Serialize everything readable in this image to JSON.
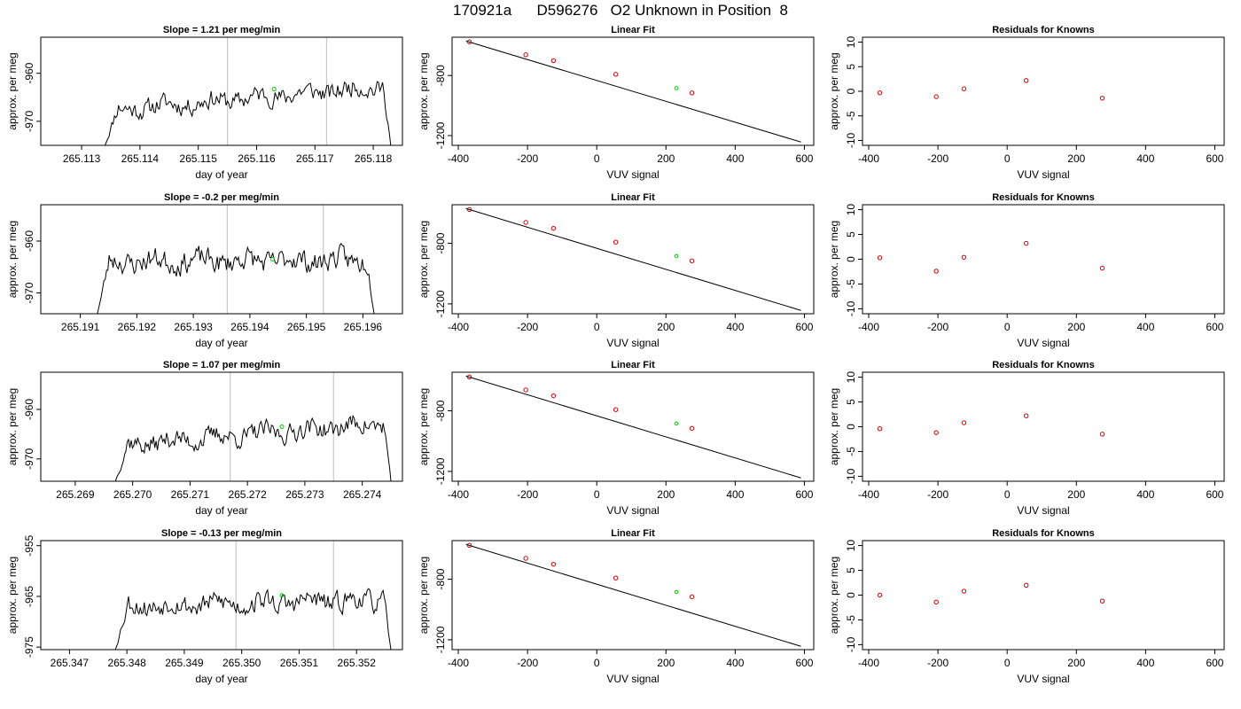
{
  "figure": {
    "title": "170921a      D596276   O2 Unknown in Position  8"
  },
  "chart_data": [
    {
      "type": "line",
      "panel": "time-series",
      "row": 1,
      "title": "Slope =  1.21  per meg/min",
      "xlabel": "day of year",
      "ylabel": "approx. per meg",
      "xlim": [
        265.1123,
        265.1185
      ],
      "ylim": [
        -975,
        -952.5
      ],
      "xticks": [
        265.113,
        265.114,
        265.115,
        265.116,
        265.117,
        265.118
      ],
      "xtick_labels": [
        "265.113",
        "265.114",
        "265.115",
        "265.116",
        "265.117",
        "265.118"
      ],
      "yticks": [
        -960,
        -970
      ],
      "ytick_labels": [
        "-960",
        "-970"
      ],
      "vlines": [
        265.1155,
        265.1172
      ],
      "highlight_point": {
        "x": 265.1163,
        "y": -963.3
      },
      "trace": {
        "start": 265.1134,
        "end": 265.1183,
        "base": -965.2,
        "trend": 5.2,
        "amp": 2.2,
        "seed": 11,
        "rise_from": -975,
        "fall_to": -975
      }
    },
    {
      "type": "scatter",
      "panel": "linear-fit",
      "row": 1,
      "title": "Linear Fit",
      "xlabel": "VUV signal",
      "ylabel": "approx. per meg",
      "xlim": [
        -418,
        627
      ],
      "ylim": [
        -1265,
        -545
      ],
      "xticks": [
        -400,
        -200,
        0,
        200,
        400,
        600
      ],
      "xtick_labels": [
        "-400",
        "-200",
        "0",
        "200",
        "400",
        "600"
      ],
      "yticks": [
        -800,
        -1200
      ],
      "ytick_labels": [
        "-800",
        "-1200"
      ],
      "fit_line": {
        "x": [
          -378,
          590
        ],
        "y": [
          -570,
          -1243
        ]
      },
      "knowns": {
        "x": [
          -368,
          -205,
          -125,
          55,
          275
        ],
        "y": [
          -576,
          -662,
          -701,
          -792,
          -916
        ]
      },
      "unknown": {
        "x": 230,
        "y": -884
      }
    },
    {
      "type": "scatter",
      "panel": "residuals",
      "row": 1,
      "title": "Residuals for Knowns",
      "xlabel": "VUV signal",
      "ylabel": "approx. per meg",
      "xlim": [
        -418,
        627
      ],
      "ylim": [
        -11,
        11
      ],
      "xticks": [
        -400,
        -200,
        0,
        200,
        400,
        600
      ],
      "xtick_labels": [
        "-400",
        "-200",
        "0",
        "200",
        "400",
        "600"
      ],
      "yticks": [
        10,
        5,
        0,
        -5,
        -10
      ],
      "ytick_labels": [
        "10",
        "5",
        "0",
        "-5",
        "-10"
      ],
      "points": {
        "x": [
          -368,
          -205,
          -125,
          55,
          275
        ],
        "y": [
          -0.3,
          -1.1,
          0.5,
          2.2,
          -1.4
        ]
      }
    },
    {
      "type": "line",
      "panel": "time-series",
      "row": 2,
      "title": "Slope =  -0.2  per meg/min",
      "xlabel": "day of year",
      "ylabel": "approx. per meg",
      "xlim": [
        265.1903,
        265.1967
      ],
      "ylim": [
        -974,
        -953
      ],
      "xticks": [
        265.191,
        265.192,
        265.193,
        265.194,
        265.195,
        265.196
      ],
      "xtick_labels": [
        "265.191",
        "265.192",
        "265.193",
        "265.194",
        "265.195",
        "265.196"
      ],
      "yticks": [
        -960,
        -970
      ],
      "ytick_labels": [
        "-960",
        "-970"
      ],
      "vlines": [
        265.1936,
        265.1953
      ],
      "highlight_point": {
        "x": 265.1944,
        "y": -963.5
      },
      "trace": {
        "start": 265.1913,
        "end": 265.1962,
        "base": -963.8,
        "trend": 0.3,
        "amp": 2.4,
        "seed": 23,
        "rise_from": -974,
        "fall_to": -974
      }
    },
    {
      "type": "scatter",
      "panel": "linear-fit",
      "row": 2,
      "title": "Linear Fit",
      "xlabel": "VUV signal",
      "ylabel": "approx. per meg",
      "xlim": [
        -418,
        627
      ],
      "ylim": [
        -1265,
        -545
      ],
      "xticks": [
        -400,
        -200,
        0,
        200,
        400,
        600
      ],
      "xtick_labels": [
        "-400",
        "-200",
        "0",
        "200",
        "400",
        "600"
      ],
      "yticks": [
        -800,
        -1200
      ],
      "ytick_labels": [
        "-800",
        "-1200"
      ],
      "fit_line": {
        "x": [
          -378,
          590
        ],
        "y": [
          -570,
          -1243
        ]
      },
      "knowns": {
        "x": [
          -368,
          -205,
          -125,
          55,
          275
        ],
        "y": [
          -576,
          -662,
          -701,
          -792,
          -916
        ]
      },
      "unknown": {
        "x": 230,
        "y": -884
      }
    },
    {
      "type": "scatter",
      "panel": "residuals",
      "row": 2,
      "title": "Residuals for Knowns",
      "xlabel": "VUV signal",
      "ylabel": "approx. per meg",
      "xlim": [
        -418,
        627
      ],
      "ylim": [
        -11,
        11
      ],
      "xticks": [
        -400,
        -200,
        0,
        200,
        400,
        600
      ],
      "xtick_labels": [
        "-400",
        "-200",
        "0",
        "200",
        "400",
        "600"
      ],
      "yticks": [
        10,
        5,
        0,
        -5,
        -10
      ],
      "ytick_labels": [
        "10",
        "5",
        "0",
        "-5",
        "-10"
      ],
      "points": {
        "x": [
          -368,
          -205,
          -125,
          55,
          275
        ],
        "y": [
          0.3,
          -2.4,
          0.4,
          3.2,
          -1.8
        ]
      }
    },
    {
      "type": "line",
      "panel": "time-series",
      "row": 3,
      "title": "Slope =  1.07  per meg/min",
      "xlabel": "day of year",
      "ylabel": "approx. per meg",
      "xlim": [
        265.2684,
        265.2747
      ],
      "ylim": [
        -974.5,
        -952.5
      ],
      "xticks": [
        265.269,
        265.27,
        265.271,
        265.272,
        265.273,
        265.274
      ],
      "xtick_labels": [
        "265.269",
        "265.270",
        "265.271",
        "265.272",
        "265.273",
        "265.274"
      ],
      "yticks": [
        -960,
        -970
      ],
      "ytick_labels": [
        "-960",
        "-970"
      ],
      "vlines": [
        265.2717,
        265.2735
      ],
      "highlight_point": {
        "x": 265.2726,
        "y": -963.5
      },
      "trace": {
        "start": 265.2697,
        "end": 265.2745,
        "base": -965,
        "trend": 4.6,
        "amp": 2.2,
        "seed": 37,
        "rise_from": -974.5,
        "fall_to": -974.5
      }
    },
    {
      "type": "scatter",
      "panel": "linear-fit",
      "row": 3,
      "title": "Linear Fit",
      "xlabel": "VUV signal",
      "ylabel": "approx. per meg",
      "xlim": [
        -418,
        627
      ],
      "ylim": [
        -1265,
        -545
      ],
      "xticks": [
        -400,
        -200,
        0,
        200,
        400,
        600
      ],
      "xtick_labels": [
        "-400",
        "-200",
        "0",
        "200",
        "400",
        "600"
      ],
      "yticks": [
        -800,
        -1200
      ],
      "ytick_labels": [
        "-800",
        "-1200"
      ],
      "fit_line": {
        "x": [
          -378,
          590
        ],
        "y": [
          -570,
          -1243
        ]
      },
      "knowns": {
        "x": [
          -368,
          -205,
          -125,
          55,
          275
        ],
        "y": [
          -576,
          -662,
          -701,
          -792,
          -916
        ]
      },
      "unknown": {
        "x": 230,
        "y": -884
      }
    },
    {
      "type": "scatter",
      "panel": "residuals",
      "row": 3,
      "title": "Residuals for Knowns",
      "xlabel": "VUV signal",
      "ylabel": "approx. per meg",
      "xlim": [
        -418,
        627
      ],
      "ylim": [
        -11,
        11
      ],
      "xticks": [
        -400,
        -200,
        0,
        200,
        400,
        600
      ],
      "xtick_labels": [
        "-400",
        "-200",
        "0",
        "200",
        "400",
        "600"
      ],
      "yticks": [
        10,
        5,
        0,
        -5,
        -10
      ],
      "ytick_labels": [
        "10",
        "5",
        "0",
        "-5",
        "-10"
      ],
      "points": {
        "x": [
          -368,
          -205,
          -125,
          55,
          275
        ],
        "y": [
          -0.4,
          -1.2,
          0.8,
          2.2,
          -1.5
        ]
      }
    },
    {
      "type": "line",
      "panel": "time-series",
      "row": 4,
      "title": "Slope =  -0.13  per meg/min",
      "xlabel": "day of year",
      "ylabel": "approx. per meg",
      "xlim": [
        265.3465,
        265.3528
      ],
      "ylim": [
        -975.5,
        -954
      ],
      "xticks": [
        265.347,
        265.348,
        265.349,
        265.35,
        265.351,
        265.352
      ],
      "xtick_labels": [
        "265.347",
        "265.348",
        "265.349",
        "265.350",
        "265.351",
        "265.352"
      ],
      "yticks": [
        -955,
        -965,
        -975
      ],
      "ytick_labels": [
        "-955",
        "-965",
        "-975"
      ],
      "vlines": [
        265.3499,
        265.3516
      ],
      "highlight_point": {
        "x": 265.3507,
        "y": -964.8
      },
      "trace": {
        "start": 265.3478,
        "end": 265.3526,
        "base": -966.3,
        "trend": 1.2,
        "amp": 2.3,
        "seed": 53,
        "rise_from": -975.5,
        "fall_to": -975.5
      }
    },
    {
      "type": "scatter",
      "panel": "linear-fit",
      "row": 4,
      "title": "Linear Fit",
      "xlabel": "VUV signal",
      "ylabel": "approx. per meg",
      "xlim": [
        -418,
        627
      ],
      "ylim": [
        -1265,
        -545
      ],
      "xticks": [
        -400,
        -200,
        0,
        200,
        400,
        600
      ],
      "xtick_labels": [
        "-400",
        "-200",
        "0",
        "200",
        "400",
        "600"
      ],
      "yticks": [
        -800,
        -1200
      ],
      "ytick_labels": [
        "-800",
        "-1200"
      ],
      "fit_line": {
        "x": [
          -378,
          590
        ],
        "y": [
          -570,
          -1243
        ]
      },
      "knowns": {
        "x": [
          -368,
          -205,
          -125,
          55,
          275
        ],
        "y": [
          -576,
          -662,
          -701,
          -792,
          -916
        ]
      },
      "unknown": {
        "x": 230,
        "y": -884
      }
    },
    {
      "type": "scatter",
      "panel": "residuals",
      "row": 4,
      "title": "Residuals for Knowns",
      "xlabel": "VUV signal",
      "ylabel": "approx. per meg",
      "xlim": [
        -418,
        627
      ],
      "ylim": [
        -11,
        11
      ],
      "xticks": [
        -400,
        -200,
        0,
        200,
        400,
        600
      ],
      "xtick_labels": [
        "-400",
        "-200",
        "0",
        "200",
        "400",
        "600"
      ],
      "yticks": [
        10,
        5,
        0,
        -5,
        -10
      ],
      "ytick_labels": [
        "10",
        "5",
        "0",
        "-5",
        "-10"
      ],
      "points": {
        "x": [
          -368,
          -205,
          -125,
          55,
          275
        ],
        "y": [
          0.0,
          -1.4,
          0.8,
          2.0,
          -1.2
        ]
      }
    }
  ],
  "colors": {
    "line": "#000000",
    "known_points": "#cc0000",
    "unknown_point": "#00cc00",
    "vline": "#c8c8c8"
  }
}
